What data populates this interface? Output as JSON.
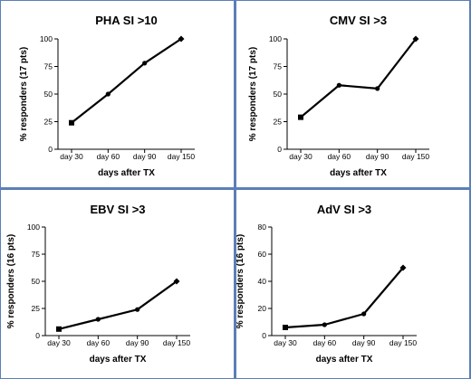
{
  "chart_data": [
    {
      "type": "line",
      "title": "PHA SI >10",
      "xlabel": "days after TX",
      "ylabel": "% responders (17 pts)",
      "categories": [
        "day 30",
        "day 60",
        "day 90",
        "day 150"
      ],
      "values": [
        24,
        50,
        78,
        100
      ],
      "ylim": [
        0,
        100
      ],
      "yticks": [
        "0",
        "25",
        "50",
        "75",
        "100"
      ],
      "grid": false
    },
    {
      "type": "line",
      "title": "CMV SI >3",
      "xlabel": "days after TX",
      "ylabel": "% responders (17 pts)",
      "categories": [
        "day 30",
        "day 60",
        "day 90",
        "day 150"
      ],
      "values": [
        29,
        58,
        55,
        100
      ],
      "ylim": [
        0,
        100
      ],
      "yticks": [
        "0",
        "25",
        "50",
        "75",
        "100"
      ],
      "grid": false
    },
    {
      "type": "line",
      "title": "EBV SI >3",
      "xlabel": "days after TX",
      "ylabel": "% responders (16 pts)",
      "categories": [
        "day 30",
        "day 60",
        "day 90",
        "day 150"
      ],
      "values": [
        6,
        15,
        24,
        50
      ],
      "ylim": [
        0,
        100
      ],
      "yticks": [
        "0",
        "25",
        "50",
        "75",
        "100"
      ],
      "grid": false
    },
    {
      "type": "line",
      "title": "AdV SI >3",
      "xlabel": "days after TX",
      "ylabel": "% responders (16 pts)",
      "categories": [
        "day 30",
        "day 60",
        "day 90",
        "day 150"
      ],
      "values": [
        6,
        8,
        16,
        50
      ],
      "ylim": [
        0,
        80
      ],
      "yticks": [
        "0",
        "20",
        "40",
        "60",
        "80"
      ],
      "grid": false
    }
  ],
  "colors": {
    "line": "#000000",
    "frame": "#5b7fb7",
    "background": "#ffffff"
  }
}
